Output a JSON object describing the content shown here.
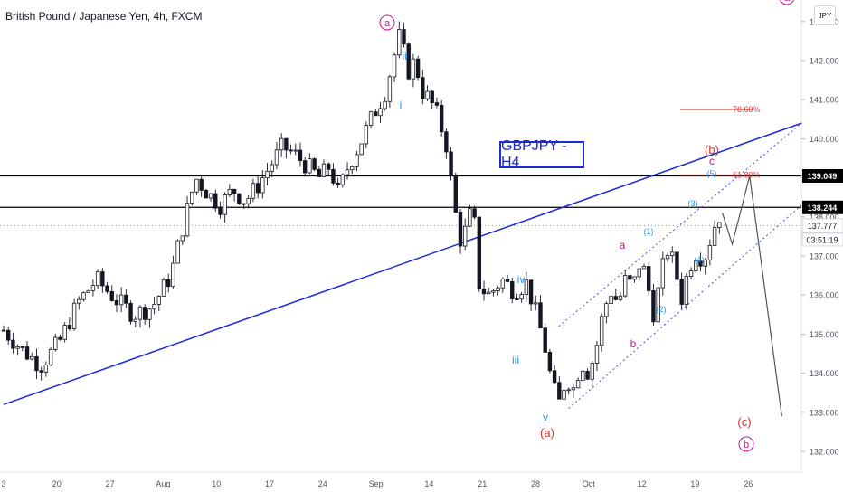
{
  "header": {
    "symbol_title": "British Pound / Japanese Yen, 4h, FXCM",
    "currency": "JPY"
  },
  "chart_label": "GBPJPY - H4",
  "colors": {
    "candle": "#131722",
    "trend_line": "#1c2ad8",
    "channel": "#3c4cf0",
    "fib_line": "#e53935",
    "wave_major": "#c2178e",
    "wave_minor": "#2196f3",
    "wave_corrective": "#d32f2f",
    "level_line": "#000000",
    "axis_text": "#50535e"
  },
  "chart_data": {
    "type": "candlestick",
    "symbol": "British Pound / Japanese Yen",
    "timeframe": "4h",
    "source": "FXCM",
    "ylim": [
      131.6,
      143.1
    ],
    "y_ticks": [
      132.0,
      133.0,
      134.0,
      135.0,
      136.0,
      137.0,
      138.0,
      139.0,
      140.0,
      141.0,
      142.0,
      143.0
    ],
    "x_ticks": [
      "3",
      "20",
      "27",
      "Aug",
      "10",
      "17",
      "24",
      "Sep",
      "14",
      "21",
      "28",
      "Oct",
      "12",
      "19",
      "26"
    ],
    "price_path": [
      {
        "t": 0,
        "p": 135.1
      },
      {
        "t": 1.5,
        "p": 134.6
      },
      {
        "t": 3,
        "p": 134.2
      },
      {
        "t": 4.5,
        "p": 134.8
      },
      {
        "t": 6,
        "p": 135.8
      },
      {
        "t": 7.5,
        "p": 136.4
      },
      {
        "t": 9,
        "p": 135.9
      },
      {
        "t": 10.5,
        "p": 135.5
      },
      {
        "t": 12,
        "p": 135.7
      },
      {
        "t": 13.5,
        "p": 136.5
      },
      {
        "t": 14.5,
        "p": 137.8
      },
      {
        "t": 15.5,
        "p": 139.0
      },
      {
        "t": 16.5,
        "p": 138.6
      },
      {
        "t": 17.5,
        "p": 138.3
      },
      {
        "t": 18.5,
        "p": 138.7
      },
      {
        "t": 19.5,
        "p": 138.4
      },
      {
        "t": 20.5,
        "p": 138.8
      },
      {
        "t": 21.5,
        "p": 139.3
      },
      {
        "t": 22.5,
        "p": 139.8
      },
      {
        "t": 23.5,
        "p": 139.6
      },
      {
        "t": 24.5,
        "p": 139.3
      },
      {
        "t": 25.5,
        "p": 139.0
      },
      {
        "t": 26.3,
        "p": 139.3
      },
      {
        "t": 27,
        "p": 138.6
      },
      {
        "t": 27.8,
        "p": 139.3
      },
      {
        "t": 28.8,
        "p": 139.9
      },
      {
        "t": 29.8,
        "p": 140.6
      },
      {
        "t": 30.8,
        "p": 141.2
      },
      {
        "t": 31.5,
        "p": 142.1
      },
      {
        "t": 32,
        "p": 142.7
      },
      {
        "t": 32.6,
        "p": 141.7
      },
      {
        "t": 33.2,
        "p": 142.0
      },
      {
        "t": 33.8,
        "p": 141.2
      },
      {
        "t": 34.4,
        "p": 141.0
      },
      {
        "t": 35,
        "p": 140.6
      },
      {
        "t": 35.7,
        "p": 139.9
      },
      {
        "t": 36.4,
        "p": 138.2
      },
      {
        "t": 37,
        "p": 137.2
      },
      {
        "t": 37.5,
        "p": 138.1
      },
      {
        "t": 38,
        "p": 137.8
      },
      {
        "t": 38.4,
        "p": 136.2
      },
      {
        "t": 39.2,
        "p": 136.0
      },
      {
        "t": 40.2,
        "p": 136.4
      },
      {
        "t": 41.2,
        "p": 136.1
      },
      {
        "t": 42.2,
        "p": 136.3
      },
      {
        "t": 42.9,
        "p": 135.6
      },
      {
        "t": 43.6,
        "p": 134.8
      },
      {
        "t": 44.2,
        "p": 133.8
      },
      {
        "t": 44.8,
        "p": 133.2
      },
      {
        "t": 45.4,
        "p": 133.9
      },
      {
        "t": 46,
        "p": 133.6
      },
      {
        "t": 46.6,
        "p": 134.3
      },
      {
        "t": 47.2,
        "p": 134.0
      },
      {
        "t": 47.8,
        "p": 134.6
      },
      {
        "t": 48.4,
        "p": 135.6
      },
      {
        "t": 49,
        "p": 136.1
      },
      {
        "t": 49.6,
        "p": 135.8
      },
      {
        "t": 50.2,
        "p": 136.4
      },
      {
        "t": 50.8,
        "p": 136.2
      },
      {
        "t": 51.4,
        "p": 136.9
      },
      {
        "t": 51.9,
        "p": 136.4
      },
      {
        "t": 52.4,
        "p": 135.5
      },
      {
        "t": 52.9,
        "p": 136.2
      },
      {
        "t": 53.5,
        "p": 137.2
      },
      {
        "t": 54.1,
        "p": 136.8
      },
      {
        "t": 54.7,
        "p": 135.9
      },
      {
        "t": 55.3,
        "p": 136.7
      },
      {
        "t": 55.9,
        "p": 137.1
      },
      {
        "t": 56.5,
        "p": 136.9
      },
      {
        "t": 57.1,
        "p": 137.5
      },
      {
        "t": 57.6,
        "p": 138.0
      },
      {
        "t": 58,
        "p": 138.1
      }
    ],
    "levels": [
      {
        "price": 139.049,
        "label": "139.049"
      },
      {
        "price": 138.244,
        "label": "138.244"
      }
    ],
    "last_price": {
      "price": 137.777,
      "label": "137.777",
      "countdown": "03:51:19"
    },
    "fibonacci": [
      {
        "price": 140.75,
        "label": "78.60%"
      },
      {
        "price": 139.07,
        "label": "61.80%"
      }
    ],
    "wave_labels": {
      "major": [
        "a",
        "b"
      ],
      "minor_roman": [
        "i",
        "ii",
        "iii",
        "iv",
        "v"
      ],
      "minor_letters": [
        "a",
        "b",
        "c"
      ],
      "numbered": [
        "(1)",
        "(2)",
        "(3)",
        "(4)",
        "(5)"
      ],
      "corrective": [
        "(a)",
        "(b)",
        "(c)"
      ]
    },
    "projection": [
      {
        "t": 58,
        "p": 138.1
      },
      {
        "t": 58.8,
        "p": 137.3
      },
      {
        "t": 60.2,
        "p": 139.05
      },
      {
        "t": 62.8,
        "p": 132.9
      }
    ],
    "trend_line": [
      {
        "t": 0,
        "p": 133.2
      },
      {
        "t": 64.4,
        "p": 140.4
      }
    ],
    "channel": {
      "upper": [
        {
          "t": 44.8,
          "p": 135.2
        },
        {
          "t": 64.4,
          "p": 140.4
        }
      ],
      "lower": [
        {
          "t": 45.6,
          "p": 133.1
        },
        {
          "t": 64.4,
          "p": 138.3
        }
      ]
    }
  }
}
